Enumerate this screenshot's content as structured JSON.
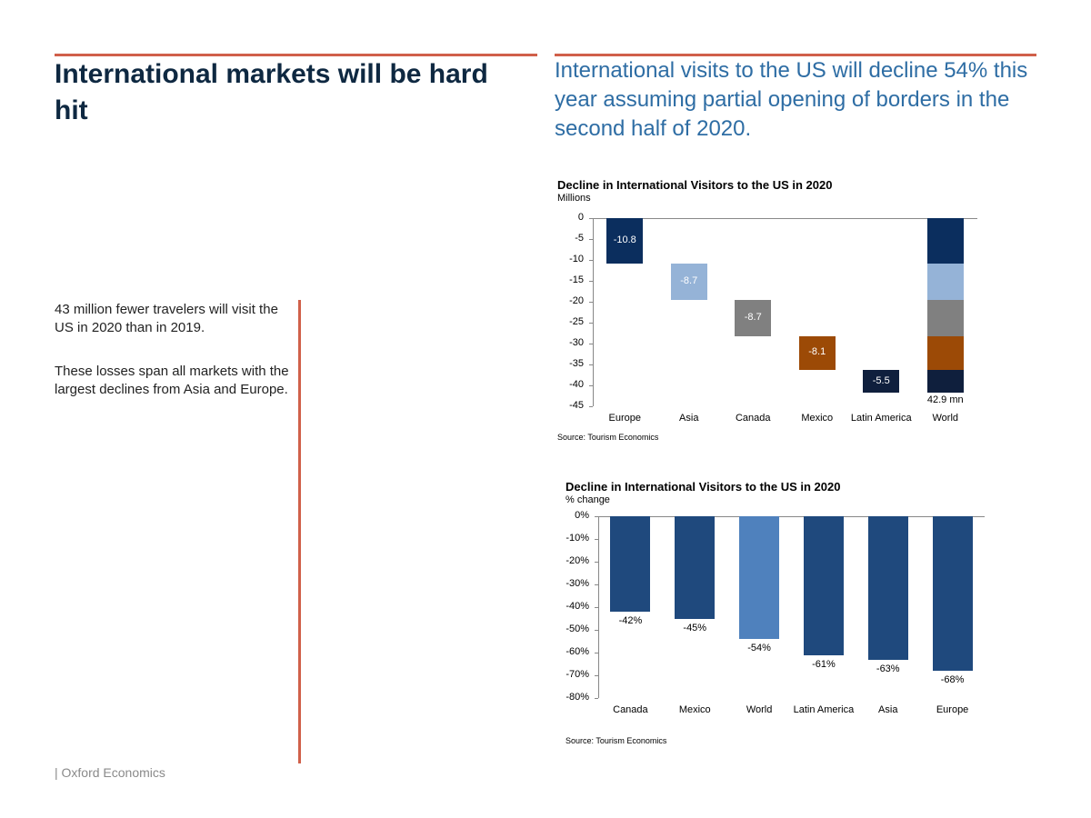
{
  "slide": {
    "title": "International markets will be hard hit",
    "headline": "International visits to the US will decline 54% this year assuming partial opening of borders in the second half of 2020.",
    "paragraphs": [
      "43 million fewer travelers will visit the US in 2020 than in 2019.",
      "These losses span all markets with the largest declines from Asia and Europe."
    ],
    "footer": "| Oxford Economics"
  },
  "chart_data": [
    {
      "type": "waterfall",
      "title": "Decline in International Visitors to the US in 2020",
      "subtitle": "Millions",
      "categories": [
        "Europe",
        "Asia",
        "Canada",
        "Mexico",
        "Latin America",
        "World"
      ],
      "values": [
        -10.8,
        -8.7,
        -8.7,
        -8.1,
        -5.5,
        null
      ],
      "colors": [
        "#0b2e5e",
        "#95b3d7",
        "#808080",
        "#9c4a06",
        "#0f1f3d",
        null
      ],
      "total_label": "42.9 mn",
      "ylim": [
        -45,
        0
      ],
      "yticks": [
        0,
        -5,
        -10,
        -15,
        -20,
        -25,
        -30,
        -35,
        -40,
        -45
      ],
      "grid": false,
      "source": "Source: Tourism Economics"
    },
    {
      "type": "bar",
      "title": "Decline in International Visitors to the US in 2020",
      "subtitle": "% change",
      "categories": [
        "Canada",
        "Mexico",
        "World",
        "Latin America",
        "Asia",
        "Europe"
      ],
      "values": [
        -42,
        -45,
        -54,
        -61,
        -63,
        -68
      ],
      "value_labels": [
        "-42%",
        "-45%",
        "-54%",
        "-61%",
        "-63%",
        "-68%"
      ],
      "colors": [
        "#1f497d",
        "#1f497d",
        "#4f81bd",
        "#1f497d",
        "#1f497d",
        "#1f497d"
      ],
      "ylim": [
        -80,
        0
      ],
      "yticks": [
        {
          "value": 0,
          "label": "0%"
        },
        {
          "value": -10,
          "label": "-10%"
        },
        {
          "value": -20,
          "label": "-20%"
        },
        {
          "value": -30,
          "label": "-30%"
        },
        {
          "value": -40,
          "label": "-40%"
        },
        {
          "value": -50,
          "label": "-50%"
        },
        {
          "value": -60,
          "label": "-60%"
        },
        {
          "value": -70,
          "label": "-70%"
        },
        {
          "value": -80,
          "label": "-80%"
        }
      ],
      "grid": false,
      "source": "Source: Tourism Economics"
    }
  ]
}
